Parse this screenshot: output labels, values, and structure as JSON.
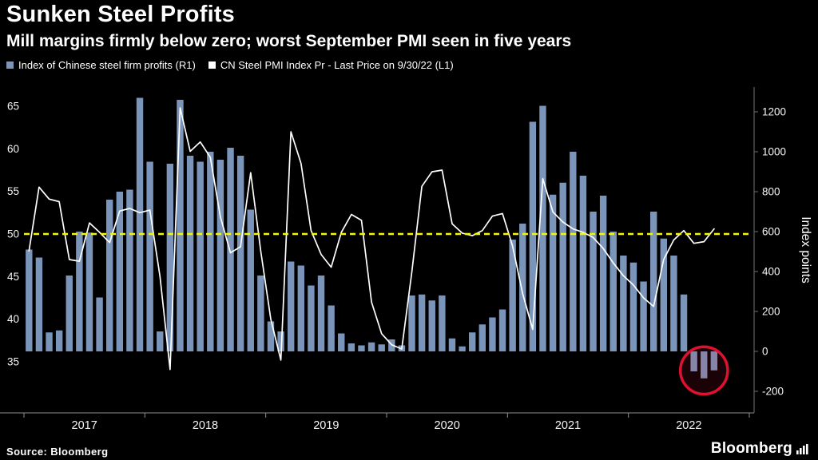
{
  "header": {
    "title": "Sunken Steel Profits",
    "subtitle": "Mill margins firmly below zero; worst September PMI seen in five years"
  },
  "legend": {
    "items": [
      {
        "label": "Index of Chinese steel firm profits (R1)",
        "swatch_color": "#7b95ba"
      },
      {
        "label": "CN Steel PMI Index Pr - Last Price on 9/30/22 (L1)",
        "swatch_color": "#ffffff"
      }
    ]
  },
  "footer": {
    "source": "Source: Bloomberg",
    "brand": "Bloomberg"
  },
  "colors": {
    "background": "#000000",
    "bar": "#7b95ba",
    "line": "#ffffff",
    "reference_line": "#f5f50f",
    "annotation": "#e01030",
    "axis_text": "#f5f5f5",
    "axis_line": "#8f8f8f"
  },
  "chart_data": {
    "type": "combo-bar-line",
    "title": "Sunken Steel Profits",
    "x_monthly": [
      "2017-01",
      "2017-02",
      "2017-03",
      "2017-04",
      "2017-05",
      "2017-06",
      "2017-07",
      "2017-08",
      "2017-09",
      "2017-10",
      "2017-11",
      "2017-12",
      "2018-01",
      "2018-02",
      "2018-03",
      "2018-04",
      "2018-05",
      "2018-06",
      "2018-07",
      "2018-08",
      "2018-09",
      "2018-10",
      "2018-11",
      "2018-12",
      "2019-01",
      "2019-02",
      "2019-03",
      "2019-04",
      "2019-05",
      "2019-06",
      "2019-07",
      "2019-08",
      "2019-09",
      "2019-10",
      "2019-11",
      "2019-12",
      "2020-01",
      "2020-02",
      "2020-03",
      "2020-04",
      "2020-05",
      "2020-06",
      "2020-07",
      "2020-08",
      "2020-09",
      "2020-10",
      "2020-11",
      "2020-12",
      "2021-01",
      "2021-02",
      "2021-03",
      "2021-04",
      "2021-05",
      "2021-06",
      "2021-07",
      "2021-08",
      "2021-09",
      "2021-10",
      "2021-11",
      "2021-12",
      "2022-01",
      "2022-02",
      "2022-03",
      "2022-04",
      "2022-05",
      "2022-06",
      "2022-07",
      "2022-08",
      "2022-09"
    ],
    "x_axis": {
      "year_labels": [
        "2017",
        "2018",
        "2019",
        "2020",
        "2021",
        "2022"
      ],
      "slot_count": 72
    },
    "left_axis": {
      "ticks": [
        35,
        40,
        45,
        50,
        55,
        60,
        65
      ],
      "min": 29,
      "max": 67
    },
    "right_axis": {
      "label": "Index points",
      "ticks": [
        -200,
        0,
        200,
        400,
        600,
        800,
        1000,
        1200
      ],
      "min": -320,
      "max": 1320
    },
    "reference_line": {
      "axis": "left",
      "value": 50,
      "style": "dashed",
      "color": "#f5f50f"
    },
    "series": [
      {
        "name": "Index of Chinese steel firm profits (R1)",
        "type": "bar",
        "axis": "right",
        "color": "#7b95ba",
        "values": [
          510,
          470,
          95,
          105,
          380,
          600,
          595,
          270,
          760,
          800,
          810,
          1270,
          950,
          100,
          940,
          1260,
          980,
          950,
          1000,
          960,
          1020,
          980,
          710,
          380,
          150,
          100,
          450,
          430,
          330,
          380,
          230,
          90,
          40,
          30,
          45,
          35,
          60,
          30,
          280,
          285,
          255,
          280,
          65,
          25,
          95,
          135,
          170,
          210,
          560,
          640,
          1150,
          1230,
          785,
          845,
          1000,
          880,
          700,
          780,
          600,
          480,
          445,
          350,
          700,
          565,
          480,
          285,
          -100,
          -135,
          -95
        ]
      },
      {
        "name": "CN Steel PMI Index Pr - Last Price on 9/30/22 (L1)",
        "type": "line",
        "axis": "left",
        "color": "#ffffff",
        "last_price_date": "9/30/22",
        "values": [
          48.0,
          55.5,
          54.1,
          53.8,
          47.0,
          46.8,
          51.3,
          50.2,
          49.0,
          52.7,
          53.0,
          52.5,
          52.8,
          45.0,
          34.1,
          64.8,
          59.7,
          60.8,
          59.0,
          52.0,
          47.8,
          48.5,
          57.2,
          48.0,
          40.0,
          35.2,
          62.0,
          58.3,
          50.4,
          47.6,
          46.1,
          50.2,
          52.3,
          51.6,
          42.0,
          38.3,
          37.0,
          36.5,
          45.5,
          55.6,
          57.3,
          57.5,
          51.2,
          50.1,
          49.8,
          50.4,
          52.1,
          52.4,
          48.6,
          43.0,
          38.8,
          56.5,
          52.6,
          51.4,
          50.6,
          50.2,
          49.6,
          48.3,
          46.6,
          45.1,
          44.0,
          42.5,
          41.5,
          47.0,
          49.3,
          50.4,
          48.9,
          49.1,
          50.6
        ]
      }
    ],
    "annotation": {
      "type": "circle",
      "color": "#e01030",
      "note": "highlights final negative profit bars"
    }
  }
}
